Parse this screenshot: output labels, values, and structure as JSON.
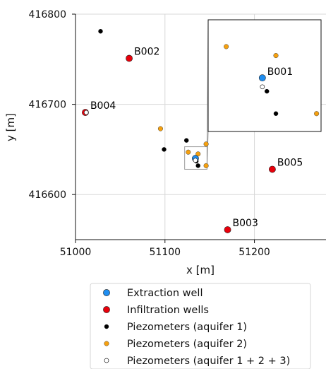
{
  "chart_data": {
    "type": "scatter",
    "xlabel": "x [m]",
    "ylabel": "y [m]",
    "xlim": [
      51000,
      51280
    ],
    "ylim": [
      416550,
      416800
    ],
    "x_ticks": [
      51000,
      51100,
      51200
    ],
    "y_ticks": [
      416600,
      416700,
      416800
    ],
    "x_tick_labels": [
      "51000",
      "51100",
      "51200"
    ],
    "y_tick_labels": [
      "416600",
      "416700",
      "416800"
    ],
    "grid": true,
    "legend_position": "bottom",
    "series": [
      {
        "name": "Extraction well",
        "color": "#1f8ef1",
        "points": [
          {
            "x": 51134,
            "y": 416640,
            "label": "B001"
          }
        ]
      },
      {
        "name": "Infiltration wells",
        "color": "#e8000b",
        "points": [
          {
            "x": 51060,
            "y": 416751,
            "label": "B002"
          },
          {
            "x": 51170,
            "y": 416561,
            "label": "B003"
          },
          {
            "x": 51011,
            "y": 416691,
            "label": "B004"
          },
          {
            "x": 51220,
            "y": 416628,
            "label": "B005"
          }
        ]
      },
      {
        "name": "Piezometers (aquifer 1)",
        "color": "#000000",
        "points": [
          {
            "x": 51028,
            "y": 416781
          },
          {
            "x": 51099,
            "y": 416650
          },
          {
            "x": 51124,
            "y": 416660
          },
          {
            "x": 51135,
            "y": 416637
          },
          {
            "x": 51137,
            "y": 416632
          }
        ]
      },
      {
        "name": "Piezometers (aquifer 2)",
        "color": "#f5a00f",
        "points": [
          {
            "x": 51095,
            "y": 416673
          },
          {
            "x": 51126,
            "y": 416647
          },
          {
            "x": 51137,
            "y": 416645
          },
          {
            "x": 51146,
            "y": 416656
          },
          {
            "x": 51146,
            "y": 416632
          }
        ]
      },
      {
        "name": "Piezometers (aquifer 1 + 2 + 3)",
        "color": "#ffffff",
        "points": [
          {
            "x": 51134,
            "y": 416638
          },
          {
            "x": 51012,
            "y": 416691
          }
        ]
      }
    ],
    "inset": {
      "xlim": [
        51122,
        51147
      ],
      "ylim": [
        416628,
        416653
      ],
      "labels": [
        {
          "x": 51134,
          "y": 416640,
          "text": "B001"
        }
      ]
    }
  }
}
